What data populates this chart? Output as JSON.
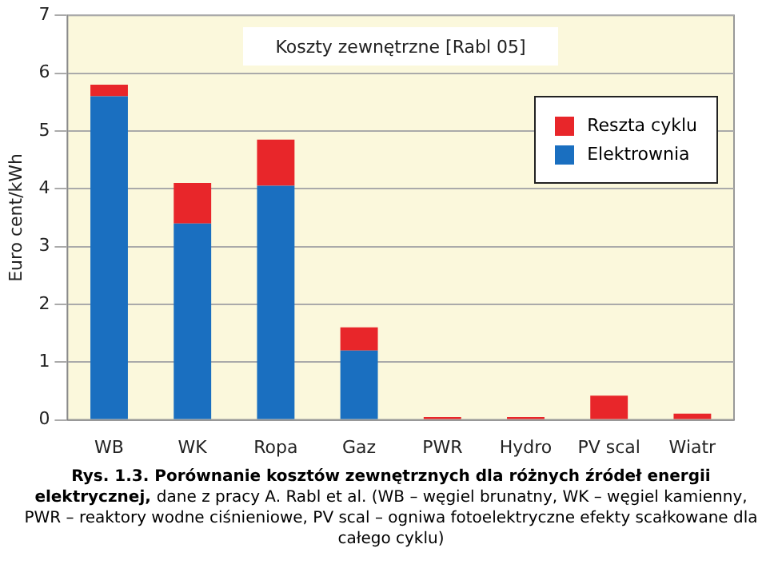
{
  "chart_data": {
    "type": "bar",
    "title": "Koszty zewnętrzne [Rabl 05]",
    "ylabel": "Euro cent/kWh",
    "categories": [
      "WB",
      "WK",
      "Ropa",
      "Gaz",
      "PWR",
      "Hydro",
      "PV scal",
      "Wiatr"
    ],
    "series": [
      {
        "name": "Elektrownia",
        "color": "#1a6fc0",
        "values": [
          5.6,
          3.4,
          4.05,
          1.2,
          0,
          0,
          0,
          0
        ]
      },
      {
        "name": "Reszta cyklu",
        "color": "#e8262a",
        "values": [
          0.2,
          0.7,
          0.8,
          0.4,
          0.05,
          0.05,
          0.42,
          0.11
        ]
      }
    ],
    "stacked": true,
    "ylim": [
      0,
      7
    ],
    "yticks": [
      0,
      1,
      2,
      3,
      4,
      5,
      6,
      7
    ],
    "grid": "y",
    "legend": "top right",
    "annotations": [
      "Rys. 1.3. Porównanie kosztów zewnętrznych dla różnych źródeł energii elektrycznej,",
      "dane z pracy A. Rabl et al. (WB – węgiel brunatny, WK – węgiel kamienny, PWR – reaktory wodne ciśnieniowe, PV scal – ogniwa fotoelektryczne efekty scałkowane dla całego cyklu)"
    ]
  }
}
